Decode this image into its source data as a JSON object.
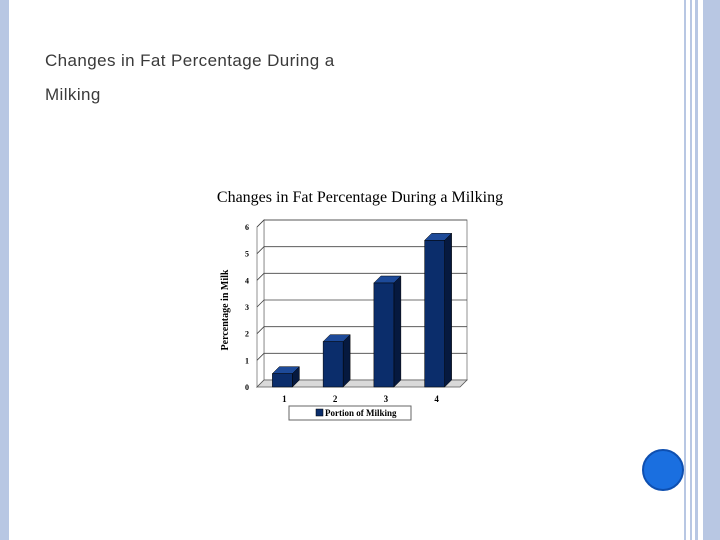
{
  "slide": {
    "title_line1": "Changes in Fat Percentage During a",
    "title_line2": "Milking"
  },
  "colors": {
    "accent": "#b8c7e3",
    "bar_front": "#0b2d6b",
    "bar_side": "#06193f",
    "bar_top": "#1d4a99",
    "circle": "#1a6fe0"
  },
  "chart_data": {
    "type": "bar",
    "title": "Changes in Fat Percentage During a Milking",
    "xlabel": "",
    "ylabel": "Percentage in Milk",
    "categories": [
      "1",
      "2",
      "3",
      "4"
    ],
    "series": [
      {
        "name": "Portion of Milking",
        "values": [
          0.5,
          1.7,
          3.9,
          5.5
        ]
      }
    ],
    "ylim": [
      0,
      6
    ],
    "yticks": [
      "0",
      "1",
      "2",
      "3",
      "4",
      "5",
      "6"
    ],
    "grid": true,
    "legend": "bottom"
  }
}
